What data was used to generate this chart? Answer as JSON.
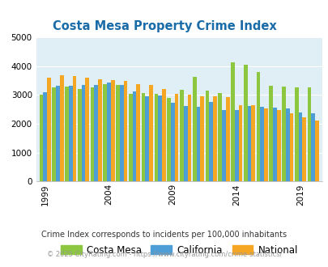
{
  "title": "Costa Mesa Property Crime Index",
  "title_color": "#1a6ca8",
  "years": [
    1999,
    2000,
    2001,
    2002,
    2003,
    2004,
    2005,
    2006,
    2007,
    2008,
    2009,
    2010,
    2011,
    2012,
    2013,
    2014,
    2015,
    2016,
    2017,
    2018,
    2019,
    2020
  ],
  "costa_mesa": [
    3020,
    3280,
    3290,
    3220,
    3260,
    3380,
    3360,
    3050,
    3070,
    3050,
    2890,
    3190,
    3620,
    3150,
    3080,
    4130,
    4060,
    3800,
    3310,
    3290,
    3260,
    3260
  ],
  "california": [
    3100,
    3320,
    3320,
    3350,
    3360,
    3430,
    3340,
    3130,
    2950,
    2980,
    2730,
    2630,
    2600,
    2760,
    2470,
    2490,
    2610,
    2590,
    2560,
    2540,
    2390,
    2370
  ],
  "national": [
    3600,
    3680,
    3660,
    3600,
    3560,
    3520,
    3480,
    3370,
    3340,
    3210,
    3040,
    3000,
    2960,
    2950,
    2930,
    2640,
    2640,
    2550,
    2470,
    2360,
    2220,
    2110
  ],
  "bar_colors": [
    "#8dc63f",
    "#4d9dd6",
    "#f5a623"
  ],
  "background_color": "#e0eff5",
  "ylim": [
    0,
    5000
  ],
  "yticks": [
    0,
    1000,
    2000,
    3000,
    4000,
    5000
  ],
  "xtick_years": [
    1999,
    2004,
    2009,
    2014,
    2019
  ],
  "legend_labels": [
    "Costa Mesa",
    "California",
    "National"
  ],
  "footnote1": "Crime Index corresponds to incidents per 100,000 inhabitants",
  "footnote2": "© 2025 CityRating.com - https://www.cityrating.com/crime-statistics/",
  "footnote1_color": "#333333",
  "footnote2_color": "#999999"
}
